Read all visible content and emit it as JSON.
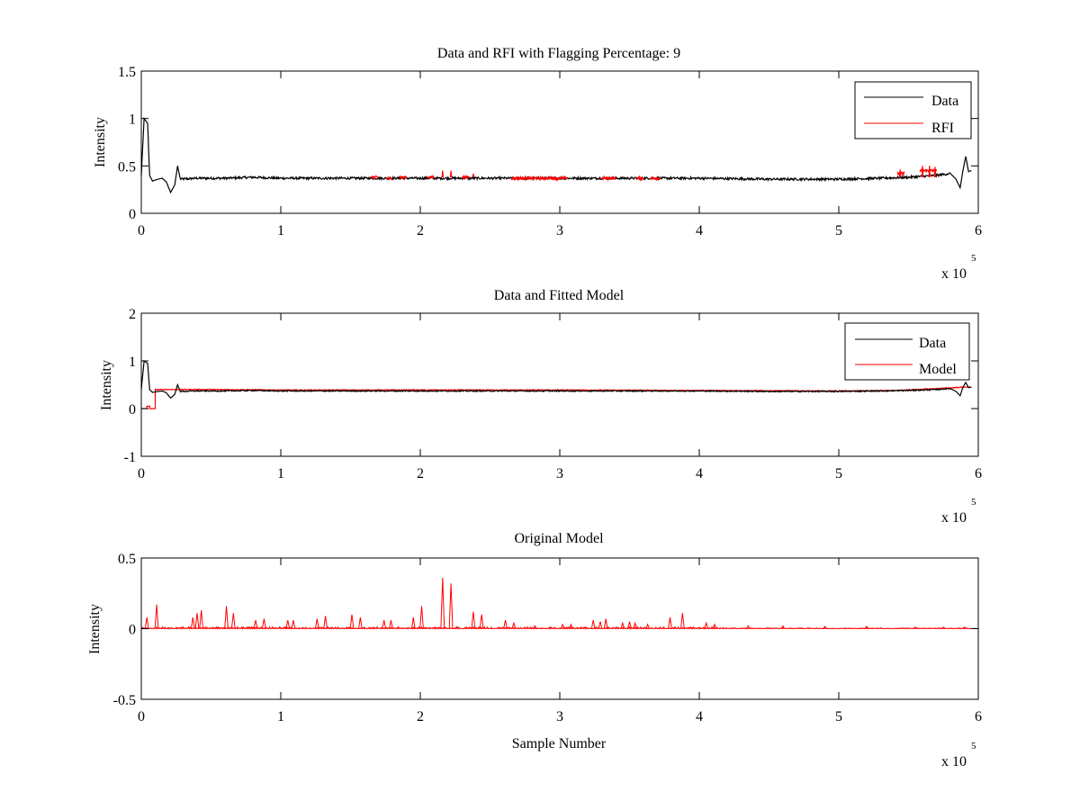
{
  "figure": {
    "background": "#ffffff",
    "data_color": "#000000",
    "rfi_color": "#ff0000"
  },
  "chart_data": [
    {
      "id": "rfi",
      "type": "line",
      "title": "Data and RFI with Flagging Percentage: 9",
      "xlabel": "",
      "ylabel": "Intensity",
      "xlim": [
        0,
        6
      ],
      "ylim": [
        0,
        1.5
      ],
      "xticks": [
        "0",
        "1",
        "2",
        "3",
        "4",
        "5",
        "6"
      ],
      "yticks": [
        "0",
        "0.5",
        "1",
        "1.5"
      ],
      "ytick_values": [
        0,
        0.5,
        1,
        1.5
      ],
      "x_exponent": {
        "base": "x 10",
        "power": "5"
      },
      "legend": [
        {
          "name": "Data",
          "color": "#000000"
        },
        {
          "name": "RFI",
          "color": "#ff0000"
        }
      ],
      "series": [
        {
          "name": "Data",
          "color": "#000000",
          "width": 1.2,
          "points": [
            [
              0,
              0.4
            ],
            [
              0.02,
              1.0
            ],
            [
              0.045,
              0.95
            ],
            [
              0.06,
              0.4
            ],
            [
              0.08,
              0.34
            ],
            [
              0.12,
              0.36
            ],
            [
              0.15,
              0.37
            ],
            [
              0.18,
              0.33
            ],
            [
              0.21,
              0.22
            ],
            [
              0.24,
              0.3
            ],
            [
              0.26,
              0.5
            ],
            [
              0.28,
              0.36
            ],
            [
              0.4,
              0.37
            ],
            [
              0.6,
              0.37
            ],
            [
              0.8,
              0.38
            ],
            [
              1.0,
              0.37
            ],
            [
              1.2,
              0.37
            ],
            [
              1.5,
              0.37
            ],
            [
              2.0,
              0.37
            ],
            [
              2.5,
              0.37
            ],
            [
              3.0,
              0.37
            ],
            [
              3.5,
              0.37
            ],
            [
              4.0,
              0.37
            ],
            [
              4.5,
              0.36
            ],
            [
              5.0,
              0.36
            ],
            [
              5.3,
              0.37
            ],
            [
              5.5,
              0.38
            ],
            [
              5.7,
              0.4
            ],
            [
              5.8,
              0.42
            ],
            [
              5.84,
              0.36
            ],
            [
              5.87,
              0.27
            ],
            [
              5.89,
              0.45
            ],
            [
              5.91,
              0.6
            ],
            [
              5.93,
              0.44
            ],
            [
              5.95,
              0.45
            ]
          ],
          "noise": 0.012
        },
        {
          "name": "RFI",
          "color": "#ff0000",
          "width": 1.2,
          "segments": [
            {
              "x": [
                1.65,
                1.7
              ],
              "y": 0.38
            },
            {
              "x": [
                1.76,
                1.8
              ],
              "y": 0.37
            },
            {
              "x": [
                1.85,
                1.9
              ],
              "y": 0.38
            },
            {
              "x": [
                2.05,
                2.1
              ],
              "y": 0.38
            },
            {
              "x": [
                2.3,
                2.35
              ],
              "y": 0.38
            },
            {
              "x": [
                2.65,
                3.05
              ],
              "y": 0.37
            },
            {
              "x": [
                3.3,
                3.4
              ],
              "y": 0.37
            },
            {
              "x": [
                3.55,
                3.6
              ],
              "y": 0.37
            },
            {
              "x": [
                3.65,
                3.72
              ],
              "y": 0.37
            },
            {
              "x": [
                5.42,
                5.47
              ],
              "y": 0.42
            },
            {
              "x": [
                5.58,
                5.7
              ],
              "y": 0.45
            }
          ],
          "spikes": [
            [
              2.16,
              0.45
            ],
            [
              2.22,
              0.45
            ],
            [
              2.38,
              0.42
            ],
            [
              5.44,
              0.46
            ],
            [
              5.6,
              0.5
            ],
            [
              5.65,
              0.5
            ],
            [
              5.69,
              0.49
            ]
          ],
          "noise": 0.015
        }
      ]
    },
    {
      "id": "model",
      "type": "line",
      "title": "Data and Fitted Model",
      "xlabel": "",
      "ylabel": "Intensity",
      "xlim": [
        0,
        6
      ],
      "ylim": [
        -1,
        2
      ],
      "xticks": [
        "0",
        "1",
        "2",
        "3",
        "4",
        "5",
        "6"
      ],
      "yticks": [
        "-1",
        "0",
        "1",
        "2"
      ],
      "ytick_values": [
        -1,
        0,
        1,
        2
      ],
      "x_exponent": {
        "base": "x 10",
        "power": "5"
      },
      "legend": [
        {
          "name": "Data",
          "color": "#000000"
        },
        {
          "name": "Model",
          "color": "#ff0000"
        }
      ],
      "series": [
        {
          "name": "Model",
          "color": "#ff0000",
          "width": 1.2,
          "points": [
            [
              0,
              0
            ],
            [
              0.04,
              0
            ],
            [
              0.04,
              0.05
            ],
            [
              0.06,
              0.05
            ],
            [
              0.06,
              0
            ],
            [
              0.1,
              0
            ],
            [
              0.1,
              0.4
            ],
            [
              0.5,
              0.4
            ],
            [
              1.0,
              0.39
            ],
            [
              2.0,
              0.39
            ],
            [
              3.0,
              0.39
            ],
            [
              4.0,
              0.38
            ],
            [
              5.0,
              0.37
            ],
            [
              5.4,
              0.38
            ],
            [
              5.7,
              0.42
            ],
            [
              5.9,
              0.45
            ],
            [
              5.95,
              0.45
            ]
          ],
          "noise": 0.008
        },
        {
          "name": "Data",
          "color": "#000000",
          "width": 1.2,
          "points": [
            [
              0,
              0.4
            ],
            [
              0.02,
              1.0
            ],
            [
              0.045,
              0.95
            ],
            [
              0.06,
              0.4
            ],
            [
              0.08,
              0.34
            ],
            [
              0.12,
              0.36
            ],
            [
              0.15,
              0.37
            ],
            [
              0.18,
              0.33
            ],
            [
              0.21,
              0.22
            ],
            [
              0.24,
              0.3
            ],
            [
              0.26,
              0.5
            ],
            [
              0.28,
              0.36
            ],
            [
              0.4,
              0.37
            ],
            [
              0.6,
              0.37
            ],
            [
              0.8,
              0.38
            ],
            [
              1.0,
              0.37
            ],
            [
              1.5,
              0.37
            ],
            [
              2.0,
              0.37
            ],
            [
              2.5,
              0.37
            ],
            [
              3.0,
              0.37
            ],
            [
              3.5,
              0.37
            ],
            [
              4.0,
              0.37
            ],
            [
              4.5,
              0.36
            ],
            [
              5.0,
              0.36
            ],
            [
              5.3,
              0.37
            ],
            [
              5.5,
              0.38
            ],
            [
              5.7,
              0.4
            ],
            [
              5.8,
              0.42
            ],
            [
              5.84,
              0.36
            ],
            [
              5.87,
              0.27
            ],
            [
              5.89,
              0.45
            ],
            [
              5.91,
              0.55
            ],
            [
              5.93,
              0.44
            ],
            [
              5.95,
              0.45
            ]
          ],
          "noise": 0.012
        }
      ]
    },
    {
      "id": "original",
      "type": "line",
      "title": "Original Model",
      "xlabel": "Sample Number",
      "ylabel": "Intensity",
      "xlim": [
        0,
        6
      ],
      "ylim": [
        -0.5,
        0.5
      ],
      "xticks": [
        "0",
        "1",
        "2",
        "3",
        "4",
        "5",
        "6"
      ],
      "yticks": [
        "-0.5",
        "0",
        "0.5"
      ],
      "ytick_values": [
        -0.5,
        0,
        0.5
      ],
      "x_exponent": {
        "base": "x 10",
        "power": "5"
      },
      "legend": [],
      "series": [
        {
          "name": "Original Model",
          "color": "#ff0000",
          "width": 1.0,
          "baseline": [
            0,
            5.95
          ],
          "spikes": [
            [
              0.04,
              0.08
            ],
            [
              0.11,
              0.17
            ],
            [
              0.37,
              0.08
            ],
            [
              0.4,
              0.11
            ],
            [
              0.43,
              0.13
            ],
            [
              0.61,
              0.16
            ],
            [
              0.66,
              0.11
            ],
            [
              0.82,
              0.06
            ],
            [
              0.88,
              0.07
            ],
            [
              1.05,
              0.06
            ],
            [
              1.09,
              0.06
            ],
            [
              1.26,
              0.07
            ],
            [
              1.32,
              0.09
            ],
            [
              1.51,
              0.1
            ],
            [
              1.57,
              0.08
            ],
            [
              1.74,
              0.06
            ],
            [
              1.79,
              0.06
            ],
            [
              1.95,
              0.08
            ],
            [
              2.01,
              0.16
            ],
            [
              2.16,
              0.36
            ],
            [
              2.22,
              0.32
            ],
            [
              2.38,
              0.12
            ],
            [
              2.44,
              0.1
            ],
            [
              2.61,
              0.06
            ],
            [
              2.67,
              0.04
            ],
            [
              2.82,
              0.02
            ],
            [
              3.02,
              0.03
            ],
            [
              3.08,
              0.03
            ],
            [
              3.24,
              0.06
            ],
            [
              3.29,
              0.05
            ],
            [
              3.33,
              0.07
            ],
            [
              3.45,
              0.04
            ],
            [
              3.5,
              0.05
            ],
            [
              3.54,
              0.04
            ],
            [
              3.63,
              0.03
            ],
            [
              3.79,
              0.08
            ],
            [
              3.88,
              0.11
            ],
            [
              4.05,
              0.04
            ],
            [
              4.11,
              0.03
            ],
            [
              4.35,
              0.02
            ],
            [
              4.6,
              0.02
            ],
            [
              4.9,
              0.015
            ],
            [
              5.2,
              0.015
            ],
            [
              5.55,
              0.01
            ],
            [
              5.75,
              0.01
            ],
            [
              5.9,
              0.01
            ]
          ],
          "grass": 0.012
        }
      ]
    }
  ]
}
